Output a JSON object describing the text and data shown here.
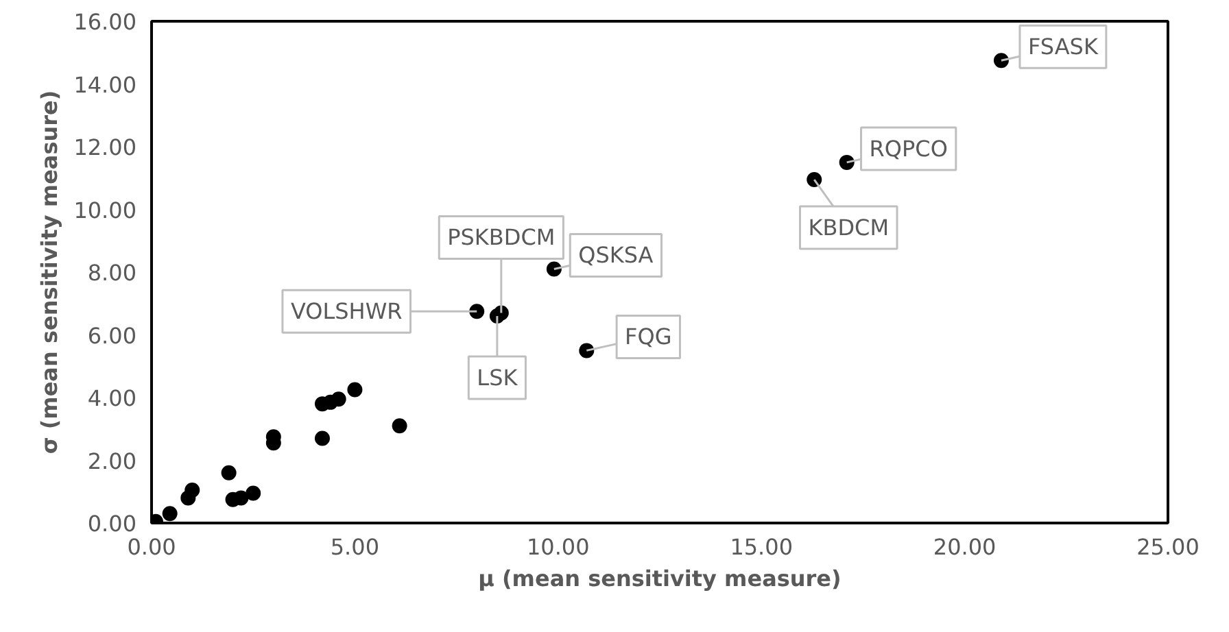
{
  "chart_data": {
    "type": "scatter",
    "xlabel": "μ (mean sensitivity measure)",
    "ylabel": "σ (mean sensitivity measure)",
    "x": [
      0.1,
      0.45,
      0.9,
      1.0,
      1.9,
      2.0,
      2.2,
      2.5,
      3.0,
      3.0,
      4.2,
      4.2,
      4.4,
      4.6,
      5.0,
      6.1,
      8.0,
      8.5,
      8.6,
      9.9,
      10.7,
      16.3,
      17.1,
      20.9
    ],
    "values": [
      0.05,
      0.3,
      0.8,
      1.05,
      1.6,
      0.75,
      0.8,
      0.95,
      2.55,
      2.75,
      2.7,
      3.8,
      3.85,
      3.95,
      4.25,
      3.1,
      6.75,
      6.6,
      6.7,
      8.1,
      5.5,
      10.95,
      11.5,
      14.75
    ],
    "color": "#000000",
    "marker": "circle",
    "grid": false,
    "xlim": [
      0,
      25
    ],
    "xticks": [
      {
        "value": 0,
        "label": "0.00"
      },
      {
        "value": 5,
        "label": "5.00"
      },
      {
        "value": 10,
        "label": "10.00"
      },
      {
        "value": 15,
        "label": "15.00"
      },
      {
        "value": 20,
        "label": "20.00"
      },
      {
        "value": 25,
        "label": "25.00"
      }
    ],
    "ylim": [
      0,
      16
    ],
    "yticks": [
      {
        "value": 0,
        "label": "0.00"
      },
      {
        "value": 2,
        "label": "2.00"
      },
      {
        "value": 4,
        "label": "4.00"
      },
      {
        "value": 6,
        "label": "6.00"
      },
      {
        "value": 8,
        "label": "8.00"
      },
      {
        "value": 10,
        "label": "10.00"
      },
      {
        "value": 12,
        "label": "12.00"
      },
      {
        "value": 14,
        "label": "14.00"
      },
      {
        "value": 16,
        "label": "16.00"
      }
    ],
    "annotations": [
      {
        "text": "VOLSHWR",
        "x": 8.0,
        "y": 6.75
      },
      {
        "text": "LSK",
        "x": 8.5,
        "y": 6.6
      },
      {
        "text": "PSKBDCM",
        "x": 8.6,
        "y": 6.7
      },
      {
        "text": "QSKSA",
        "x": 9.9,
        "y": 8.1
      },
      {
        "text": "FQG",
        "x": 10.7,
        "y": 5.5
      },
      {
        "text": "KBDCM",
        "x": 16.3,
        "y": 10.95
      },
      {
        "text": "RQPCO",
        "x": 17.1,
        "y": 11.5
      },
      {
        "text": "FSASK",
        "x": 20.9,
        "y": 14.75
      }
    ]
  }
}
